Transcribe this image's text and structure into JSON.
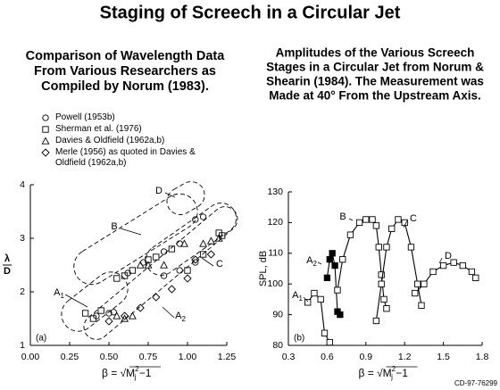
{
  "title": "Staging of Screech in a Circular Jet",
  "footer": "CD-97-76299",
  "chart_data": [
    {
      "type": "scatter",
      "heading": [
        "Comparison of Wavelength Data",
        "From Various Researchers as",
        "Compiled by Norum (1983)."
      ],
      "panel_label": "(a)",
      "ylabel": {
        "numerator": "λ",
        "denominator": "D"
      },
      "xlabel": {
        "prefix": "β = √",
        "base": "M",
        "sup": "2",
        "sub": "j",
        "suffix": " −1"
      },
      "xlim": [
        0,
        1.25
      ],
      "xticks": [
        {
          "value": 0,
          "label": "0.00"
        },
        {
          "value": 0.25,
          "label": "0.25"
        },
        {
          "value": 0.5,
          "label": "0.50"
        },
        {
          "value": 0.75,
          "label": "0.75"
        },
        {
          "value": 1,
          "label": "1.00"
        },
        {
          "value": 1.25,
          "label": "1.25"
        }
      ],
      "ylim": [
        1,
        4
      ],
      "yticks": [
        1,
        2,
        3,
        4
      ],
      "series": [
        {
          "name": "Powell (1953b)",
          "marker": "circle",
          "color": "#000000",
          "x": [
            0.42,
            0.5,
            0.53,
            0.62,
            0.72,
            0.85,
            0.95,
            1.05,
            1.1,
            0.85,
            0.95,
            1.05
          ],
          "values": [
            1.55,
            1.6,
            1.62,
            2.35,
            2.55,
            2.75,
            2.9,
            3.35,
            3.4,
            2.3,
            2.4,
            2.55
          ]
        },
        {
          "name": "Sherman et al. (1976)",
          "marker": "square",
          "color": "#000000",
          "x": [
            0.35,
            0.4,
            0.45,
            0.55,
            0.6,
            0.65,
            0.75,
            0.8,
            0.9,
            1.0,
            1.1,
            1.2,
            1.22
          ],
          "values": [
            1.6,
            1.5,
            1.65,
            2.25,
            2.3,
            2.4,
            2.6,
            2.65,
            2.8,
            2.4,
            2.7,
            3.1,
            3.05
          ]
        },
        {
          "name": "Davies & Oldfield (1962a,b)",
          "marker": "triangle",
          "color": "#000000",
          "x": [
            0.55,
            0.6,
            0.65,
            0.7,
            0.75,
            0.85,
            0.98,
            1.1,
            1.15,
            1.2
          ],
          "values": [
            1.55,
            1.5,
            1.55,
            2.5,
            2.5,
            2.5,
            2.9,
            2.9,
            2.95,
            3.0
          ]
        },
        {
          "name": "Merle (1956) as quoted in Davies & Oldfield (1962a,b)",
          "marker": "diamond",
          "color": "#000000",
          "x": [
            0.5,
            0.6,
            0.7,
            0.8,
            0.9,
            1.0,
            1.05,
            1.15
          ],
          "values": [
            1.45,
            1.55,
            1.7,
            1.9,
            2.05,
            2.25,
            2.6,
            2.7
          ]
        }
      ],
      "annotations": [
        {
          "text": "A",
          "sub": "1"
        },
        {
          "text": "B"
        },
        {
          "text": "D"
        },
        {
          "text": "C"
        },
        {
          "text": "A",
          "sub": "2"
        }
      ]
    },
    {
      "type": "line",
      "heading": [
        "Amplitudes of the Various Screech",
        "Stages in a Circular Jet from Norum &",
        "Shearin (1984). The Measurement was",
        "Made at 40° From the Upstream Axis."
      ],
      "panel_label": "(b)",
      "ylabel": "SPL, dB",
      "xlabel": {
        "prefix": "β = √",
        "base": "M",
        "sup": "2",
        "sub": "j",
        "suffix": " −1"
      },
      "xlim": [
        0.3,
        1.8
      ],
      "xticks": [
        0.3,
        0.6,
        0.9,
        1.2,
        1.5,
        1.8
      ],
      "ylim": [
        80,
        130
      ],
      "yticks": [
        80,
        90,
        100,
        110,
        120,
        130
      ],
      "series": [
        {
          "filled": false,
          "color": "#000000",
          "x": [
            0.45,
            0.5,
            0.55,
            0.58,
            0.62
          ],
          "values": [
            94,
            97,
            95,
            84,
            81
          ]
        },
        {
          "filled": true,
          "color": "#000000",
          "x": [
            0.6,
            0.62,
            0.64,
            0.66,
            0.68,
            0.7
          ],
          "values": [
            102,
            108,
            110,
            106,
            91,
            90
          ]
        },
        {
          "filled": false,
          "color": "#000000",
          "x": [
            0.68,
            0.72,
            0.78,
            0.85,
            0.9,
            0.95,
            0.98,
            1.0,
            1.02,
            1.04,
            1.06
          ],
          "values": [
            98,
            108,
            116,
            120,
            121,
            121,
            119,
            112,
            103,
            95,
            92
          ]
        },
        {
          "filled": false,
          "color": "#000000",
          "x": [
            0.98,
            1.02,
            1.06,
            1.1,
            1.15,
            1.2,
            1.25,
            1.3,
            1.33
          ],
          "values": [
            88,
            100,
            112,
            118,
            121,
            120,
            112,
            100,
            93
          ]
        },
        {
          "filled": false,
          "color": "#000000",
          "x": [
            1.28,
            1.35,
            1.42,
            1.5,
            1.58,
            1.65,
            1.72,
            1.75
          ],
          "values": [
            97,
            100,
            104,
            106,
            107,
            106,
            104,
            102
          ]
        }
      ],
      "annotations": [
        {
          "text": "A",
          "sub": "1"
        },
        {
          "text": "A",
          "sub": "2"
        },
        {
          "text": "B"
        },
        {
          "text": "C"
        },
        {
          "text": "D"
        }
      ]
    }
  ]
}
